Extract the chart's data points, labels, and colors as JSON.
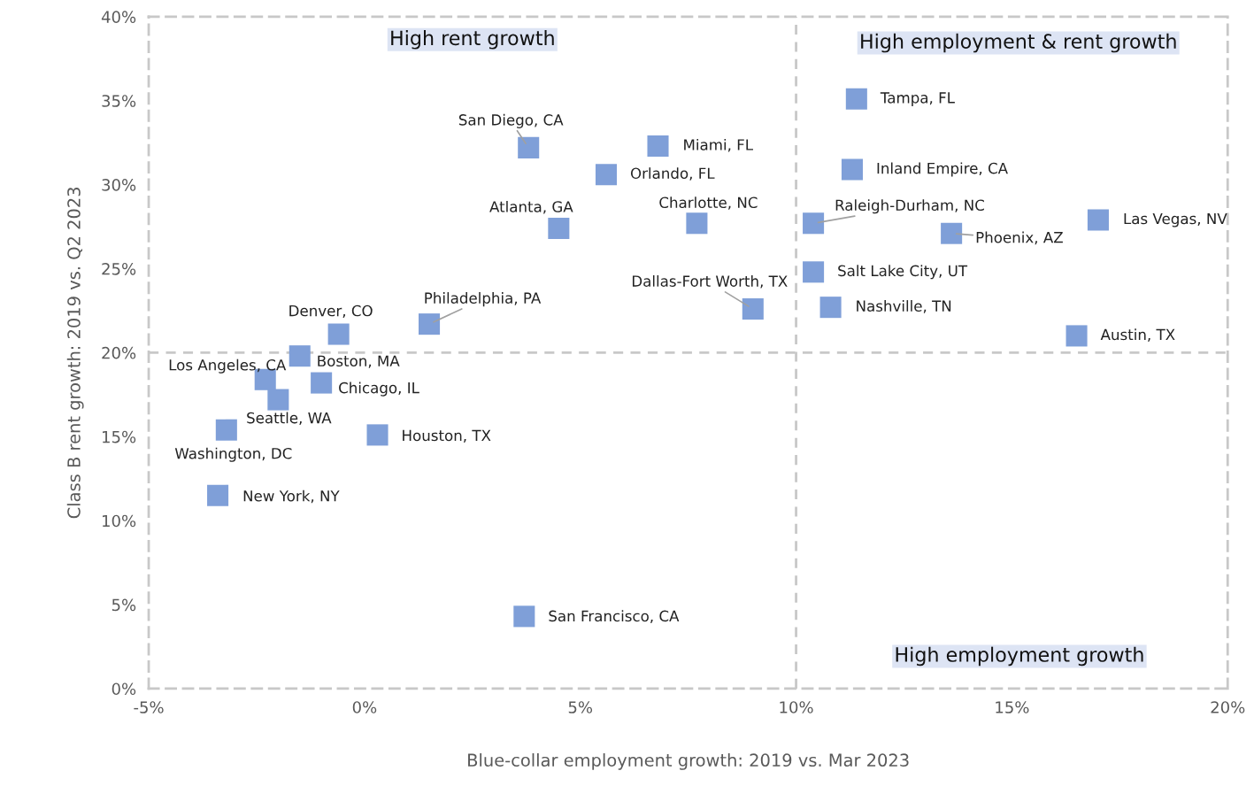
{
  "chart_data": {
    "type": "scatter",
    "xlabel": "Blue-collar employment growth: 2019 vs. Mar 2023",
    "ylabel": "Class B rent growth: 2019 vs. Q2 2023",
    "xlim": [
      -5,
      20
    ],
    "ylim": [
      0,
      40
    ],
    "xticks": [
      {
        "value": -5,
        "label": "-5%"
      },
      {
        "value": 0,
        "label": "0%"
      },
      {
        "value": 5,
        "label": "5%"
      },
      {
        "value": 10,
        "label": "10%"
      },
      {
        "value": 15,
        "label": "15%"
      },
      {
        "value": 20,
        "label": "20%"
      }
    ],
    "yticks": [
      {
        "value": 0,
        "label": "0%"
      },
      {
        "value": 5,
        "label": "5%"
      },
      {
        "value": 10,
        "label": "10%"
      },
      {
        "value": 15,
        "label": "15%"
      },
      {
        "value": 20,
        "label": "20%"
      },
      {
        "value": 25,
        "label": "25%"
      },
      {
        "value": 30,
        "label": "30%"
      },
      {
        "value": 35,
        "label": "35%"
      },
      {
        "value": 40,
        "label": "40%"
      }
    ],
    "grid": false,
    "legend": false,
    "marker": "square",
    "series": [
      {
        "color": "#7f9fd8",
        "x": [
          11.4,
          11.3,
          17.0,
          13.6,
          10.4,
          10.4,
          10.8,
          16.5,
          9.0,
          7.7,
          6.8,
          5.6,
          3.8,
          4.5,
          1.5,
          -0.6,
          -1.5,
          -1.0,
          -2.3,
          -2.0,
          0.3,
          -3.2,
          -3.4,
          3.7
        ],
        "values": [
          35.1,
          30.9,
          27.9,
          27.1,
          27.7,
          24.8,
          22.7,
          21.0,
          22.6,
          27.7,
          32.3,
          30.6,
          32.2,
          27.4,
          21.7,
          21.1,
          19.8,
          18.2,
          18.4,
          17.2,
          15.1,
          15.4,
          11.5,
          4.3
        ]
      }
    ],
    "ref_lines": [
      {
        "axis": "x",
        "value": 10,
        "color": "#c8c8c8",
        "line_style": "dashed"
      },
      {
        "axis": "y",
        "value": 20,
        "color": "#c8c8c8",
        "line_style": "dashed"
      }
    ],
    "annotations": [
      {
        "text": "Tampa, FL",
        "x": 11.4,
        "y": 35.1
      },
      {
        "text": "Inland Empire, CA",
        "x": 11.3,
        "y": 30.9
      },
      {
        "text": "Las Vegas, NV",
        "x": 17.0,
        "y": 27.9
      },
      {
        "text": "Phoenix, AZ",
        "x": 13.6,
        "y": 27.1
      },
      {
        "text": "Raleigh-Durham, NC",
        "x": 10.4,
        "y": 27.7
      },
      {
        "text": "Salt Lake City, UT",
        "x": 10.4,
        "y": 24.8
      },
      {
        "text": "Nashville, TN",
        "x": 10.8,
        "y": 22.7
      },
      {
        "text": "Austin, TX",
        "x": 16.5,
        "y": 21.0
      },
      {
        "text": "Dallas-Fort Worth, TX",
        "x": 9.0,
        "y": 22.6
      },
      {
        "text": "Charlotte, NC",
        "x": 7.7,
        "y": 27.7
      },
      {
        "text": "Miami, FL",
        "x": 6.8,
        "y": 32.3
      },
      {
        "text": "Orlando, FL",
        "x": 5.6,
        "y": 30.6
      },
      {
        "text": "San Diego, CA",
        "x": 3.8,
        "y": 32.2
      },
      {
        "text": "Atlanta, GA",
        "x": 4.5,
        "y": 27.4
      },
      {
        "text": "Philadelphia, PA",
        "x": 1.5,
        "y": 21.7
      },
      {
        "text": "Denver, CO",
        "x": -0.6,
        "y": 21.1
      },
      {
        "text": "Boston, MA",
        "x": -1.5,
        "y": 19.8
      },
      {
        "text": "Chicago, IL",
        "x": -1.0,
        "y": 18.2
      },
      {
        "text": "Los Angeles, CA",
        "x": -2.3,
        "y": 18.4
      },
      {
        "text": "Seattle, WA",
        "x": -2.0,
        "y": 17.2
      },
      {
        "text": "Houston, TX",
        "x": 0.3,
        "y": 15.1
      },
      {
        "text": "Washington, DC",
        "x": -3.2,
        "y": 15.4
      },
      {
        "text": "New York, NY",
        "x": -3.4,
        "y": 11.5
      },
      {
        "text": "San Francisco, CA",
        "x": 3.7,
        "y": 4.3
      },
      "High rent growth",
      "High employment & rent growth",
      "High employment growth"
    ]
  }
}
